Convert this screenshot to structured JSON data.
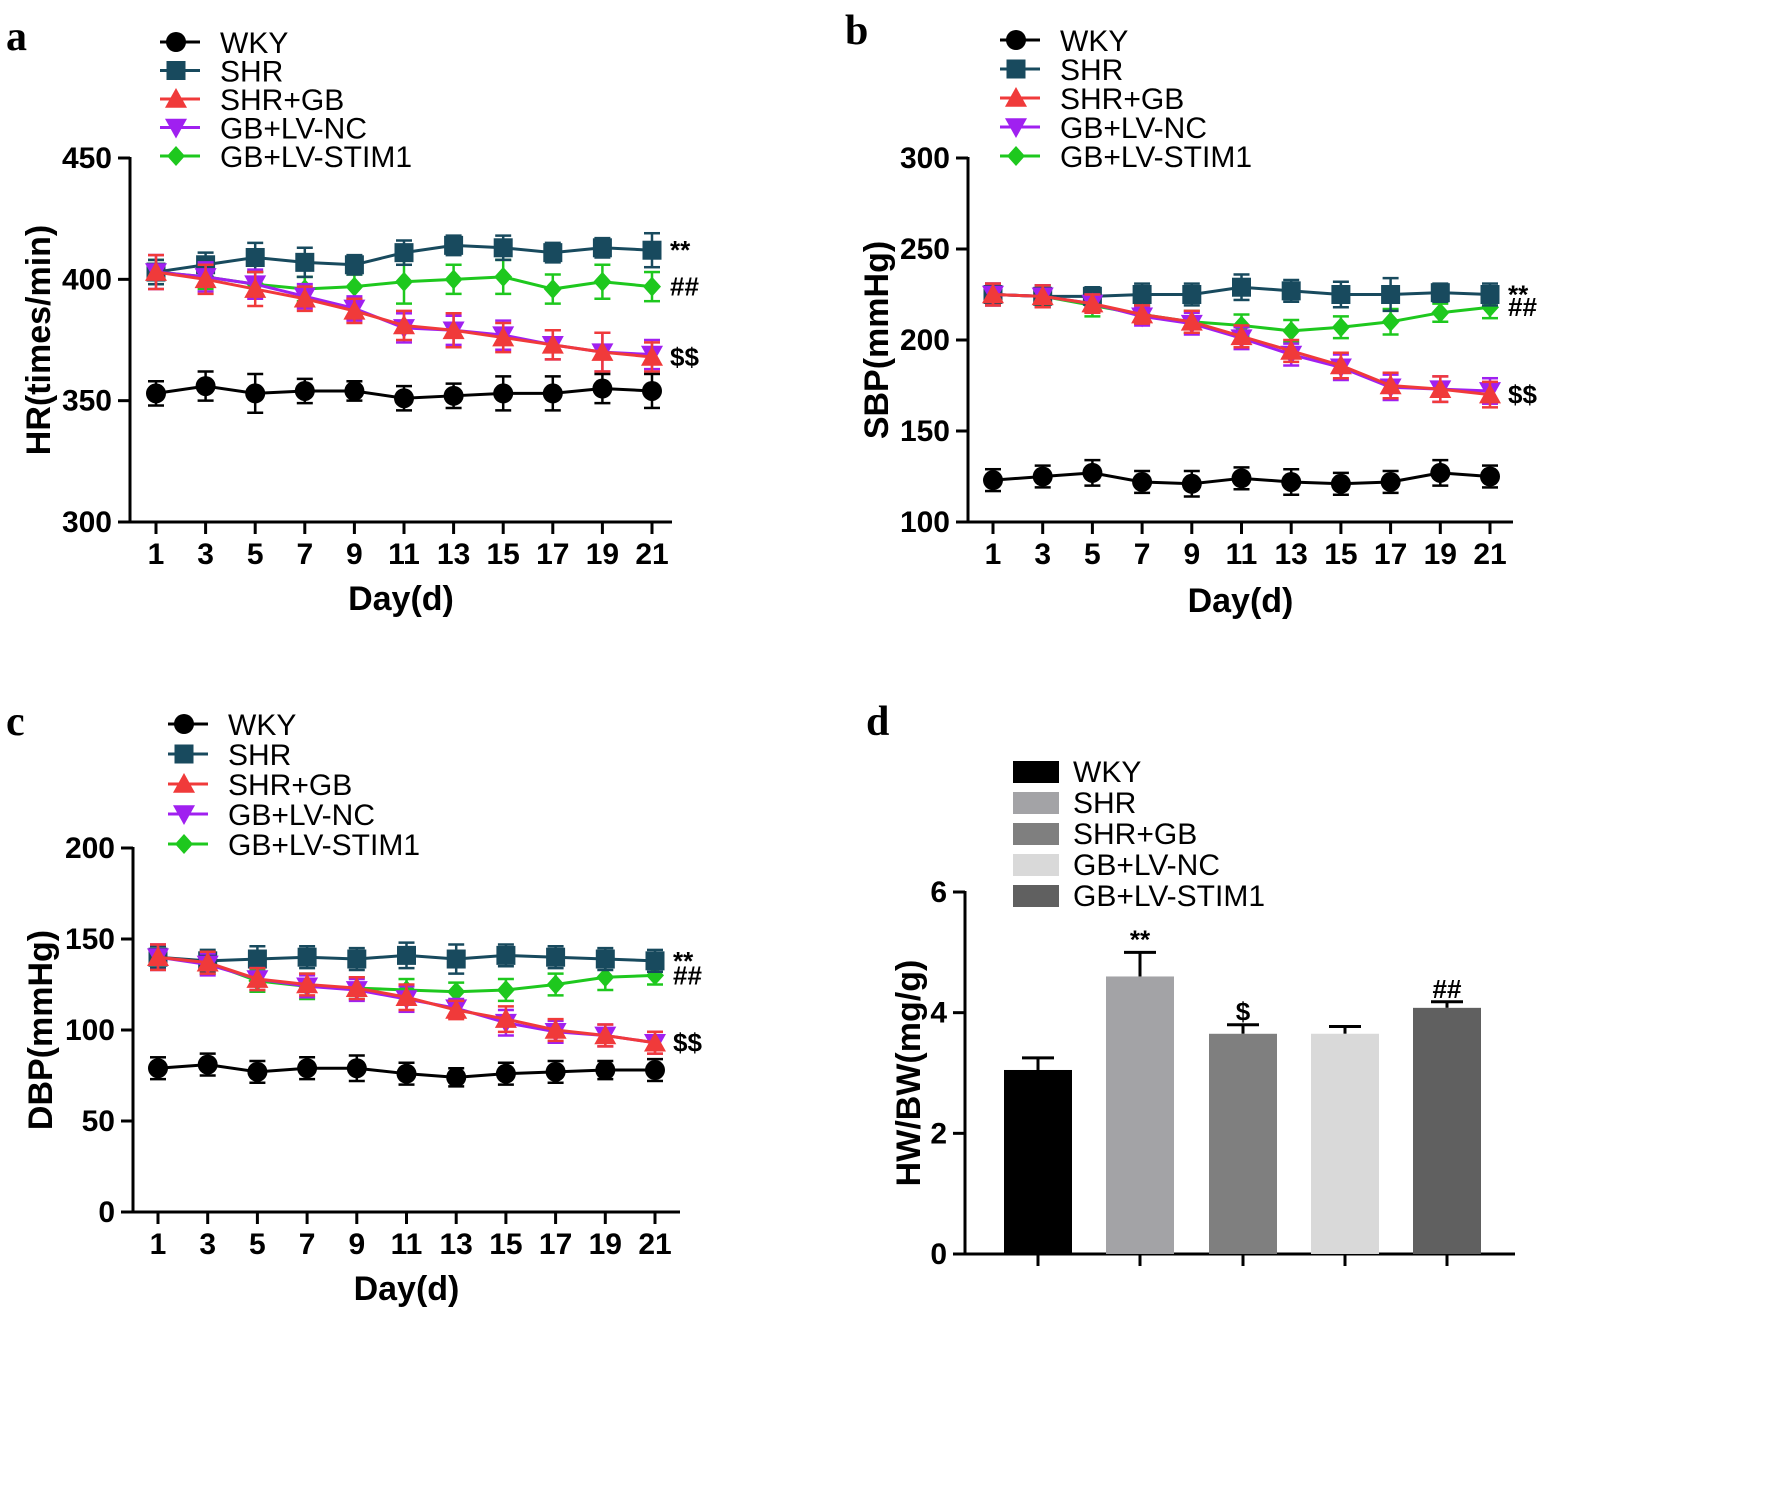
{
  "legend_series": [
    "WKY",
    "SHR",
    "SHR+GB",
    "GB+LV-NC",
    "GB+LV-STIM1"
  ],
  "colors": {
    "WKY": "#000000",
    "SHR": "#184a5e",
    "SHR+GB": "#f03a3a",
    "GB+LV-NC": "#a020f0",
    "GB+LV-STIM1": "#1ec81e"
  },
  "bar_colors": [
    "#000000",
    "#a3a3a6",
    "#7f7f7f",
    "#d9d9d9",
    "#606060"
  ],
  "markers": {
    "WKY": "circle",
    "SHR": "square",
    "SHR+GB": "triangle-up",
    "GB+LV-NC": "triangle-down",
    "GB+LV-STIM1": "diamond"
  },
  "chart_data": [
    {
      "panel": "a",
      "type": "line",
      "xlabel": "Day(d)",
      "ylabel": "HR(times/min)",
      "x": [
        1,
        3,
        5,
        7,
        9,
        11,
        13,
        15,
        17,
        19,
        21
      ],
      "ylim": [
        300,
        450
      ],
      "yticks": [
        300,
        350,
        400,
        450
      ],
      "series": [
        {
          "name": "WKY",
          "values": [
            353,
            356,
            353,
            354,
            354,
            351,
            352,
            353,
            353,
            355,
            354
          ],
          "errors": [
            5,
            6,
            8,
            5,
            4,
            5,
            5,
            7,
            7,
            6,
            7
          ]
        },
        {
          "name": "SHR",
          "values": [
            403,
            406,
            409,
            407,
            406,
            411,
            414,
            413,
            411,
            413,
            412
          ],
          "errors": [
            5,
            5,
            6,
            6,
            4,
            5,
            4,
            5,
            4,
            4,
            7
          ]
        },
        {
          "name": "SHR+GB",
          "values": [
            403,
            400,
            396,
            392,
            387,
            381,
            379,
            376,
            373,
            370,
            368
          ],
          "errors": [
            7,
            6,
            7,
            5,
            5,
            6,
            7,
            6,
            6,
            8,
            6
          ]
        },
        {
          "name": "GB+LV-NC",
          "values": [
            403,
            401,
            398,
            393,
            388,
            380,
            379,
            377,
            373,
            370,
            369
          ],
          "errors": [
            7,
            6,
            6,
            5,
            5,
            6,
            6,
            6,
            6,
            8,
            6
          ]
        },
        {
          "name": "GB+LV-STIM1",
          "values": [
            403,
            401,
            398,
            396,
            397,
            399,
            400,
            401,
            396,
            399,
            397
          ],
          "errors": [
            5,
            5,
            5,
            5,
            5,
            9,
            6,
            7,
            6,
            7,
            6
          ]
        }
      ],
      "annotations": [
        {
          "text": "**",
          "series": "SHR"
        },
        {
          "text": "##",
          "series": "GB+LV-STIM1"
        },
        {
          "text": "$$",
          "series": "SHR+GB"
        }
      ]
    },
    {
      "panel": "b",
      "type": "line",
      "xlabel": "Day(d)",
      "ylabel": "SBP(mmHg)",
      "x": [
        1,
        3,
        5,
        7,
        9,
        11,
        13,
        15,
        17,
        19,
        21
      ],
      "ylim": [
        100,
        300
      ],
      "yticks": [
        100,
        150,
        200,
        250,
        300
      ],
      "series": [
        {
          "name": "WKY",
          "values": [
            123,
            125,
            127,
            122,
            121,
            124,
            122,
            121,
            122,
            127,
            125
          ],
          "errors": [
            6,
            6,
            7,
            6,
            7,
            6,
            7,
            6,
            6,
            7,
            6
          ]
        },
        {
          "name": "SHR",
          "values": [
            225,
            224,
            224,
            225,
            225,
            229,
            227,
            225,
            225,
            226,
            225
          ],
          "errors": [
            6,
            6,
            5,
            6,
            6,
            7,
            6,
            7,
            9,
            5,
            6
          ]
        },
        {
          "name": "SHR+GB",
          "values": [
            225,
            224,
            220,
            214,
            210,
            202,
            194,
            186,
            175,
            173,
            170
          ],
          "errors": [
            6,
            6,
            5,
            5,
            6,
            6,
            6,
            7,
            7,
            7,
            7
          ]
        },
        {
          "name": "GB+LV-NC",
          "values": [
            225,
            224,
            220,
            213,
            209,
            201,
            192,
            185,
            174,
            173,
            172
          ],
          "errors": [
            6,
            6,
            5,
            5,
            6,
            6,
            6,
            7,
            7,
            7,
            7
          ]
        },
        {
          "name": "GB+LV-STIM1",
          "values": [
            225,
            224,
            219,
            214,
            210,
            208,
            205,
            207,
            210,
            215,
            218
          ],
          "errors": [
            5,
            5,
            6,
            5,
            6,
            6,
            6,
            6,
            7,
            5,
            6
          ]
        }
      ],
      "annotations": [
        {
          "text": "**",
          "series": "SHR"
        },
        {
          "text": "##",
          "series": "GB+LV-STIM1"
        },
        {
          "text": "$$",
          "series": "SHR+GB"
        }
      ]
    },
    {
      "panel": "c",
      "type": "line",
      "xlabel": "Day(d)",
      "ylabel": "DBP(mmHg)",
      "x": [
        1,
        3,
        5,
        7,
        9,
        11,
        13,
        15,
        17,
        19,
        21
      ],
      "ylim": [
        0,
        200
      ],
      "yticks": [
        0,
        50,
        100,
        150,
        200
      ],
      "series": [
        {
          "name": "WKY",
          "values": [
            79,
            81,
            77,
            79,
            79,
            76,
            74,
            76,
            77,
            78,
            78
          ],
          "errors": [
            6,
            6,
            6,
            6,
            7,
            6,
            5,
            6,
            6,
            5,
            6
          ]
        },
        {
          "name": "SHR",
          "values": [
            140,
            138,
            139,
            140,
            139,
            141,
            139,
            141,
            140,
            139,
            138
          ],
          "errors": [
            6,
            6,
            7,
            6,
            6,
            7,
            8,
            6,
            6,
            6,
            6
          ]
        },
        {
          "name": "SHR+GB",
          "values": [
            140,
            137,
            128,
            125,
            123,
            118,
            111,
            106,
            100,
            97,
            93
          ],
          "errors": [
            7,
            6,
            6,
            6,
            6,
            7,
            5,
            7,
            6,
            6,
            6
          ]
        },
        {
          "name": "GB+LV-NC",
          "values": [
            140,
            136,
            128,
            124,
            122,
            117,
            112,
            104,
            99,
            97,
            93
          ],
          "errors": [
            7,
            6,
            6,
            6,
            6,
            7,
            5,
            7,
            6,
            6,
            6
          ]
        },
        {
          "name": "GB+LV-STIM1",
          "values": [
            140,
            137,
            127,
            124,
            123,
            122,
            121,
            122,
            125,
            129,
            130
          ],
          "errors": [
            6,
            6,
            6,
            7,
            6,
            6,
            5,
            6,
            6,
            7,
            5
          ]
        }
      ],
      "annotations": [
        {
          "text": "**",
          "series": "SHR"
        },
        {
          "text": "##",
          "series": "GB+LV-STIM1"
        },
        {
          "text": "$$",
          "series": "SHR+GB"
        }
      ]
    },
    {
      "panel": "d",
      "type": "bar",
      "xlabel": "",
      "ylabel": "HW/BW(mg/g)",
      "categories": [
        "WKY",
        "SHR",
        "SHR+GB",
        "GB+LV-NC",
        "GB+LV-STIM1"
      ],
      "values": [
        3.05,
        4.6,
        3.65,
        3.65,
        4.08
      ],
      "errors": [
        0.2,
        0.4,
        0.15,
        0.12,
        0.1
      ],
      "ylim": [
        0,
        6
      ],
      "yticks": [
        0,
        2,
        4,
        6
      ],
      "annotations": [
        "",
        "**",
        "$",
        "",
        "##"
      ]
    }
  ]
}
